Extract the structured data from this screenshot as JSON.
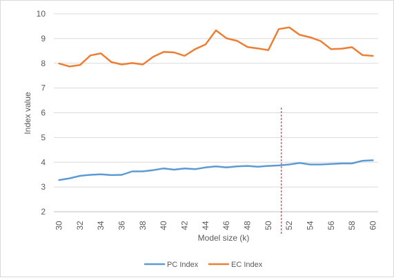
{
  "chart_data": {
    "type": "line",
    "title": "",
    "xlabel": "Model size (k)",
    "ylabel": "Index value",
    "x": [
      30,
      31,
      32,
      33,
      34,
      35,
      36,
      37,
      38,
      39,
      40,
      41,
      42,
      43,
      44,
      45,
      46,
      47,
      48,
      49,
      50,
      51,
      52,
      53,
      54,
      55,
      56,
      57,
      58,
      59,
      60
    ],
    "x_tick_labels": [
      "30",
      "32",
      "34",
      "36",
      "38",
      "40",
      "42",
      "44",
      "46",
      "48",
      "50",
      "52",
      "54",
      "56",
      "58",
      "60"
    ],
    "y_tick_labels": [
      "2",
      "3",
      "4",
      "5",
      "6",
      "7",
      "8",
      "9",
      "10"
    ],
    "ylim": [
      2,
      10
    ],
    "xlim": [
      29.5,
      60.5
    ],
    "grid": true,
    "legend_position": "bottom",
    "series": [
      {
        "name": "PC Index",
        "color": "#5b9bd5",
        "values": [
          3.28,
          3.35,
          3.45,
          3.49,
          3.51,
          3.48,
          3.49,
          3.63,
          3.63,
          3.68,
          3.75,
          3.7,
          3.75,
          3.72,
          3.79,
          3.83,
          3.79,
          3.83,
          3.85,
          3.82,
          3.85,
          3.87,
          3.91,
          3.97,
          3.91,
          3.91,
          3.93,
          3.95,
          3.95,
          4.06,
          4.08
        ]
      },
      {
        "name": "EC Index",
        "color": "#ed7d31",
        "values": [
          7.99,
          7.87,
          7.93,
          8.32,
          8.4,
          8.05,
          7.95,
          8.01,
          7.95,
          8.26,
          8.46,
          8.44,
          8.3,
          8.57,
          8.76,
          9.33,
          9.01,
          8.91,
          8.66,
          8.6,
          8.53,
          9.38,
          9.45,
          9.15,
          9.05,
          8.9,
          8.57,
          8.59,
          8.65,
          8.33,
          8.3
        ]
      }
    ],
    "annotations": [
      {
        "type": "vertical-dashed-line",
        "x": 51.25,
        "color": "#ff0000"
      }
    ]
  }
}
